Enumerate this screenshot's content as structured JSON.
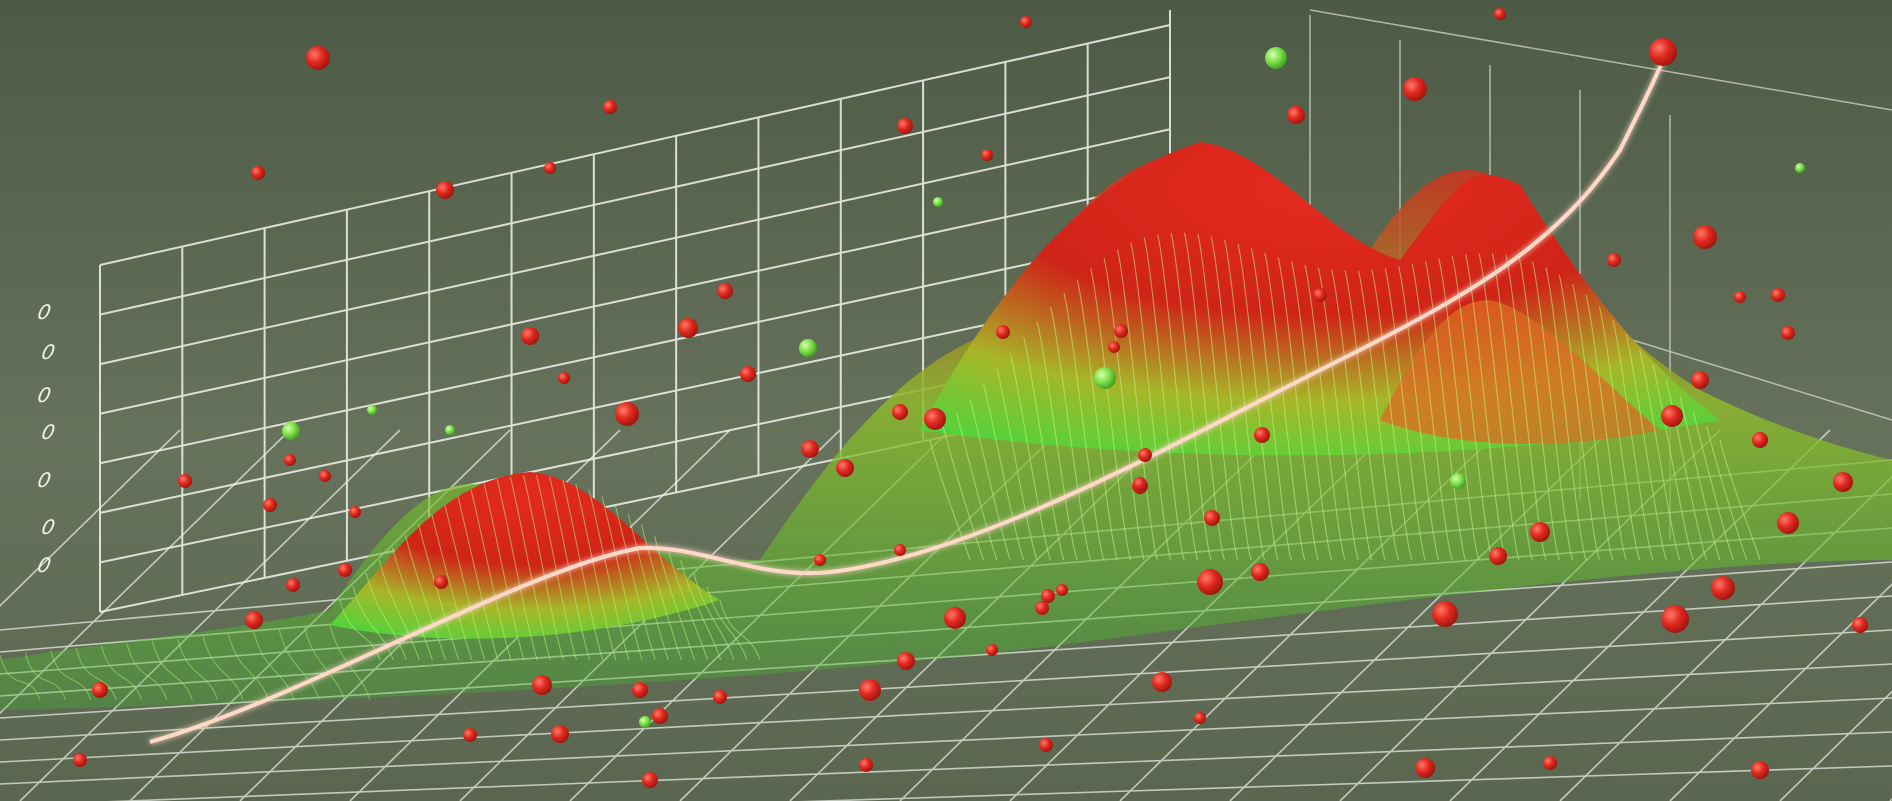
{
  "scene": {
    "description_kind": "3d-surface-illustration",
    "background": "#5f6b55",
    "grid_color": "#f2f4ee",
    "surface_low_color": "#6fd33a",
    "surface_high_color": "#d8261c",
    "particle_color_primary": "#e0281e",
    "particle_color_secondary": "#7ee04a",
    "trend_line_color": "#ffd8c8",
    "peak_count": 3,
    "has_trend_line": true
  },
  "axis_tick_labels": [
    "0",
    "0",
    "0",
    "0",
    "0",
    "0",
    "0"
  ]
}
